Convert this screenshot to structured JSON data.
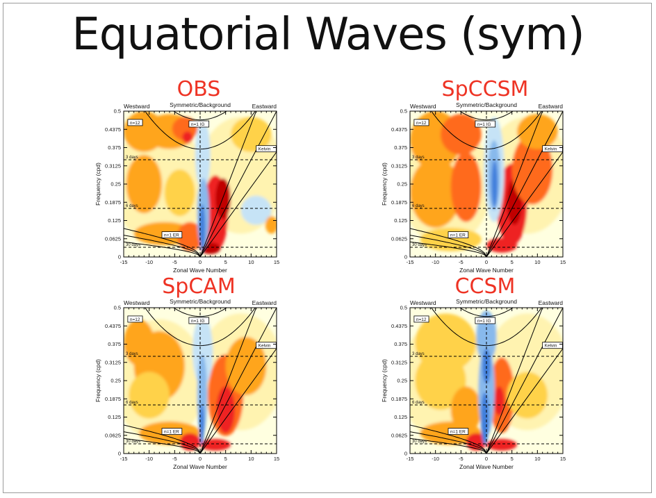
{
  "slide": {
    "title": "Equatorial Waves (sym)"
  },
  "colors": {
    "low": "#3f7fdc",
    "low2": "#88b9ec",
    "low3": "#c6e3f6",
    "bg": "#ffffe0",
    "y1": "#fff3b0",
    "y2": "#ffd24a",
    "o1": "#ffa51f",
    "o2": "#ff6b1a",
    "r1": "#ee2020",
    "r2": "#c00000"
  },
  "panel_common": {
    "top_left": "Westward",
    "top_center": "Symmetric/Background",
    "top_right": "Eastward",
    "x_ticks": [
      "-15",
      "-10",
      "-5",
      "0",
      "5",
      "10",
      "15"
    ],
    "y_ticks": [
      "0",
      "0.0625",
      "0.125",
      "0.1875",
      "0.25",
      "0.3125",
      "0.375",
      "0.4375",
      "0.5"
    ],
    "curve_labels": [
      "n=12",
      "n=1 IG",
      "Kelvin",
      "n=1 ER"
    ],
    "period_labels": [
      "3 days",
      "6 days",
      "30 days"
    ]
  },
  "chart_data": [
    {
      "type": "heatmap",
      "title": "OBS",
      "xlabel": "Zonal Wave Number",
      "ylabel": "Frequency (cpd)",
      "xlim": [
        -15,
        15
      ],
      "ylim": [
        0,
        0.5
      ],
      "period_lines_cpd": [
        0.3333,
        0.1667,
        0.0333
      ],
      "vertical_line_x": 0,
      "blobs": [
        {
          "x": -11,
          "y": 0.43,
          "rx": 4,
          "ry": 0.07,
          "level": "o1"
        },
        {
          "x": -6,
          "y": 0.43,
          "rx": 5,
          "ry": 0.06,
          "level": "o1"
        },
        {
          "x": -3,
          "y": 0.44,
          "rx": 2.5,
          "ry": 0.04,
          "level": "o2"
        },
        {
          "x": -2.5,
          "y": 0.41,
          "rx": 1,
          "ry": 0.02,
          "level": "r1"
        },
        {
          "x": -11,
          "y": 0.25,
          "rx": 3.5,
          "ry": 0.1,
          "level": "o1"
        },
        {
          "x": -4,
          "y": 0.22,
          "rx": 3,
          "ry": 0.08,
          "level": "y2"
        },
        {
          "x": -7,
          "y": 0.08,
          "rx": 6,
          "ry": 0.04,
          "level": "o1"
        },
        {
          "x": -2,
          "y": 0.07,
          "rx": 2.5,
          "ry": 0.05,
          "level": "o2"
        },
        {
          "x": 3,
          "y": 0.15,
          "rx": 2.5,
          "ry": 0.13,
          "level": "r1"
        },
        {
          "x": 4.5,
          "y": 0.2,
          "rx": 1.5,
          "ry": 0.07,
          "level": "r2"
        },
        {
          "x": 2,
          "y": 0.03,
          "rx": 2,
          "ry": 0.02,
          "level": "r2"
        },
        {
          "x": 11,
          "y": 0.16,
          "rx": 3,
          "ry": 0.05,
          "level": "low3"
        },
        {
          "x": 14,
          "y": 0.11,
          "rx": 1.2,
          "ry": 0.03,
          "level": "o1"
        },
        {
          "x": 10,
          "y": 0.42,
          "rx": 4,
          "ry": 0.06,
          "level": "y2"
        },
        {
          "x": 0.5,
          "y": 0.35,
          "rx": 1.5,
          "ry": 0.12,
          "level": "low3"
        },
        {
          "x": 0.6,
          "y": 0.15,
          "rx": 1.2,
          "ry": 0.12,
          "level": "low2"
        },
        {
          "x": 0.4,
          "y": 0.1,
          "rx": 0.6,
          "ry": 0.08,
          "level": "low"
        }
      ]
    },
    {
      "type": "heatmap",
      "title": "SpCCSM",
      "xlabel": "Zonal Wave Number",
      "ylabel": "Frequency (cpd)",
      "xlim": [
        -15,
        15
      ],
      "ylim": [
        0,
        0.5
      ],
      "period_lines_cpd": [
        0.3333,
        0.1667,
        0.0333
      ],
      "vertical_line_x": 0,
      "blobs": [
        {
          "x": -10,
          "y": 0.4,
          "rx": 5,
          "ry": 0.1,
          "level": "o1"
        },
        {
          "x": -5,
          "y": 0.42,
          "rx": 4,
          "ry": 0.07,
          "level": "o2"
        },
        {
          "x": -10,
          "y": 0.22,
          "rx": 5,
          "ry": 0.12,
          "level": "o1"
        },
        {
          "x": -4,
          "y": 0.24,
          "rx": 3,
          "ry": 0.12,
          "level": "o2"
        },
        {
          "x": -7,
          "y": 0.06,
          "rx": 6,
          "ry": 0.04,
          "level": "y2"
        },
        {
          "x": 5,
          "y": 0.18,
          "rx": 3,
          "ry": 0.14,
          "level": "r1"
        },
        {
          "x": 5.5,
          "y": 0.19,
          "rx": 1.5,
          "ry": 0.08,
          "level": "r2"
        },
        {
          "x": 3,
          "y": 0.04,
          "rx": 3,
          "ry": 0.025,
          "level": "r1"
        },
        {
          "x": 9,
          "y": 0.3,
          "rx": 4,
          "ry": 0.12,
          "level": "o2"
        },
        {
          "x": 10,
          "y": 0.43,
          "rx": 4,
          "ry": 0.06,
          "level": "o1"
        },
        {
          "x": 1.5,
          "y": 0.3,
          "rx": 2,
          "ry": 0.18,
          "level": "low3"
        },
        {
          "x": 1.5,
          "y": 0.28,
          "rx": 1.2,
          "ry": 0.12,
          "level": "low2"
        },
        {
          "x": 1.6,
          "y": 0.25,
          "rx": 0.6,
          "ry": 0.08,
          "level": "low"
        }
      ]
    },
    {
      "type": "heatmap",
      "title": "SpCAM",
      "xlabel": "Zonal Wave Number",
      "ylabel": "Frequency (cpd)",
      "xlim": [
        -15,
        15
      ],
      "ylim": [
        0,
        0.5
      ],
      "period_lines_cpd": [
        0.3333,
        0.1667,
        0.0333
      ],
      "vertical_line_x": 0,
      "blobs": [
        {
          "x": -12,
          "y": 0.38,
          "rx": 3,
          "ry": 0.08,
          "level": "o1"
        },
        {
          "x": -8,
          "y": 0.3,
          "rx": 5,
          "ry": 0.12,
          "level": "o1"
        },
        {
          "x": -10,
          "y": 0.2,
          "rx": 4,
          "ry": 0.08,
          "level": "y2"
        },
        {
          "x": -6,
          "y": 0.07,
          "rx": 6,
          "ry": 0.04,
          "level": "o1"
        },
        {
          "x": -2,
          "y": 0.04,
          "rx": 2,
          "ry": 0.03,
          "level": "r1"
        },
        {
          "x": 5,
          "y": 0.2,
          "rx": 3.5,
          "ry": 0.14,
          "level": "o2"
        },
        {
          "x": 5,
          "y": 0.15,
          "rx": 1.8,
          "ry": 0.08,
          "level": "r1"
        },
        {
          "x": 3,
          "y": 0.03,
          "rx": 3,
          "ry": 0.02,
          "level": "r1"
        },
        {
          "x": 9,
          "y": 0.3,
          "rx": 4,
          "ry": 0.1,
          "level": "o1"
        },
        {
          "x": 0.5,
          "y": 0.35,
          "rx": 2,
          "ry": 0.12,
          "level": "low3"
        },
        {
          "x": 0.4,
          "y": 0.2,
          "rx": 1,
          "ry": 0.14,
          "level": "low2"
        },
        {
          "x": 0.3,
          "y": 0.1,
          "rx": 0.5,
          "ry": 0.07,
          "level": "low"
        }
      ]
    },
    {
      "type": "heatmap",
      "title": "CCSM",
      "xlabel": "Zonal Wave Number",
      "ylabel": "Frequency (cpd)",
      "xlim": [
        -15,
        15
      ],
      "ylim": [
        0,
        0.5
      ],
      "period_lines_cpd": [
        0.3333,
        0.1667,
        0.0333
      ],
      "vertical_line_x": 0,
      "blobs": [
        {
          "x": -8,
          "y": 0.38,
          "rx": 6,
          "ry": 0.1,
          "level": "y2"
        },
        {
          "x": -9,
          "y": 0.25,
          "rx": 5,
          "ry": 0.1,
          "level": "y2"
        },
        {
          "x": -4,
          "y": 0.15,
          "rx": 3,
          "ry": 0.08,
          "level": "o1"
        },
        {
          "x": -7,
          "y": 0.07,
          "rx": 6,
          "ry": 0.04,
          "level": "o1"
        },
        {
          "x": -2,
          "y": 0.04,
          "rx": 2,
          "ry": 0.03,
          "level": "r1"
        },
        {
          "x": 3,
          "y": 0.2,
          "rx": 2.5,
          "ry": 0.13,
          "level": "o2"
        },
        {
          "x": 2.5,
          "y": 0.18,
          "rx": 1,
          "ry": 0.05,
          "level": "r1"
        },
        {
          "x": 3,
          "y": 0.03,
          "rx": 3,
          "ry": 0.02,
          "level": "r1"
        },
        {
          "x": 8,
          "y": 0.2,
          "rx": 4,
          "ry": 0.08,
          "level": "y2"
        },
        {
          "x": 0,
          "y": 0.4,
          "rx": 2,
          "ry": 0.09,
          "level": "low2"
        },
        {
          "x": 0,
          "y": 0.22,
          "rx": 1.6,
          "ry": 0.16,
          "level": "low2"
        },
        {
          "x": -0.3,
          "y": 0.12,
          "rx": 0.8,
          "ry": 0.09,
          "level": "low"
        },
        {
          "x": 0,
          "y": 0.3,
          "rx": 0.8,
          "ry": 0.06,
          "level": "low"
        }
      ]
    }
  ]
}
